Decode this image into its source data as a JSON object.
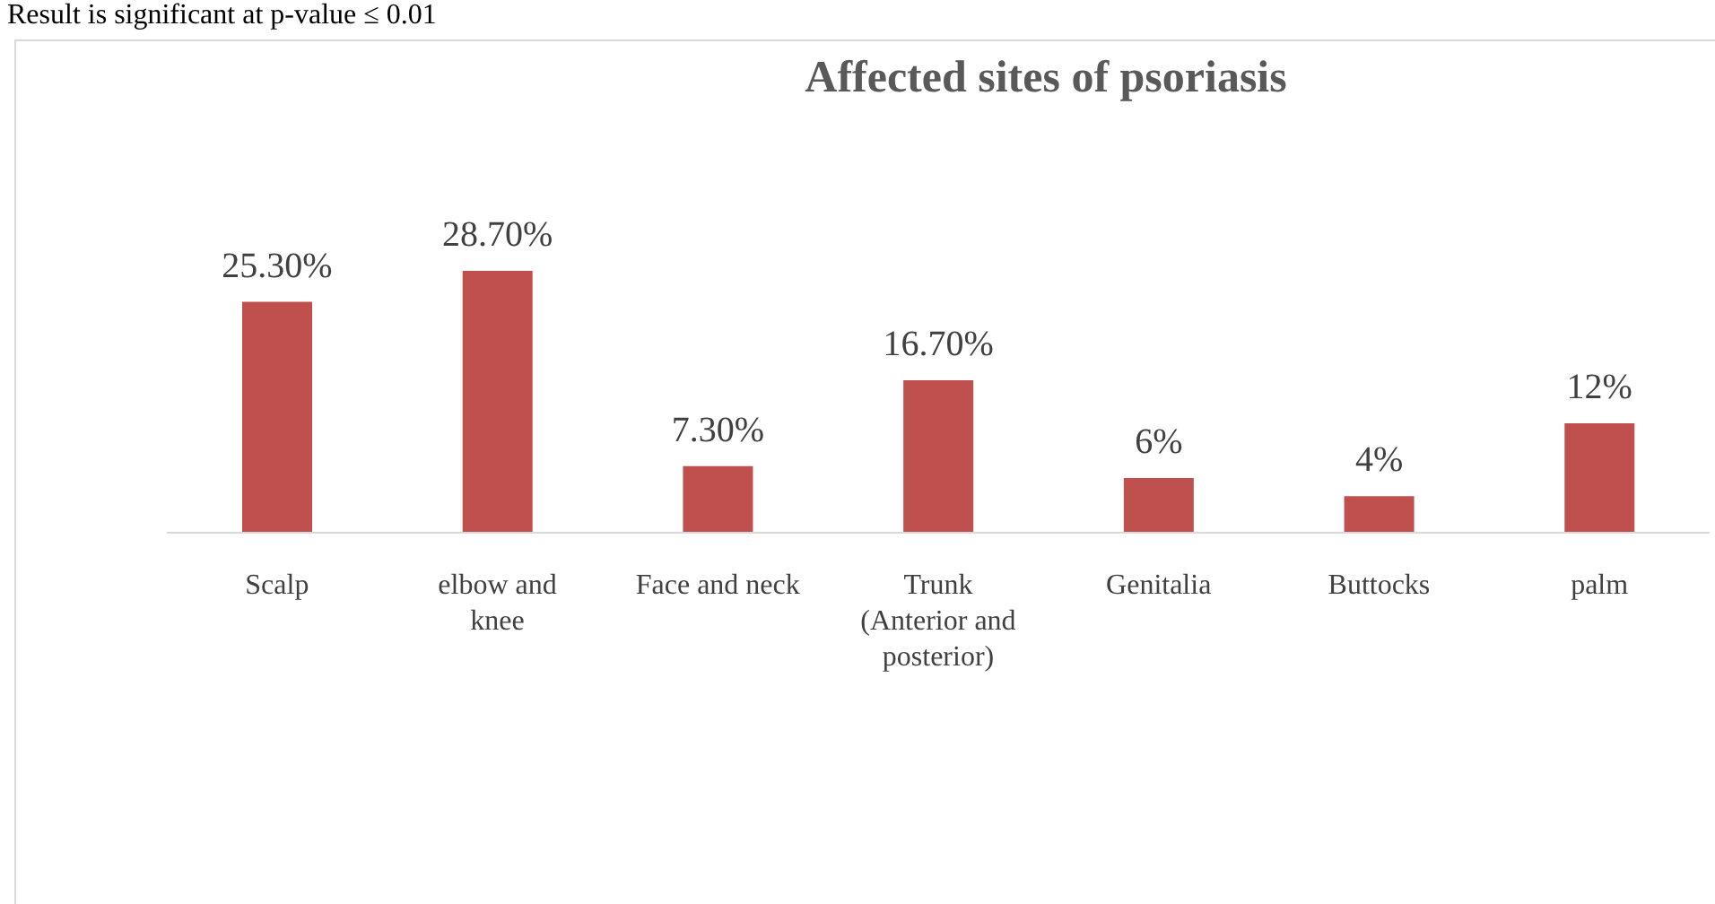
{
  "chart_data": {
    "type": "bar",
    "title": "Affected sites of psoriasis",
    "annotations": [
      "Result is significant at p-value ≤ 0.01"
    ],
    "categories": [
      "Scalp",
      "elbow and knee",
      "Face and neck",
      "Trunk (Anterior and posterior)",
      "Genitalia",
      "Buttocks",
      "palm"
    ],
    "values": [
      25.3,
      28.7,
      7.3,
      16.7,
      6,
      4,
      12
    ],
    "value_labels": [
      "25.30%",
      "28.70%",
      "7.30%",
      "16.70%",
      "6%",
      "4%",
      "12%"
    ],
    "color": "#c0504d",
    "grid": false,
    "legend": false
  }
}
